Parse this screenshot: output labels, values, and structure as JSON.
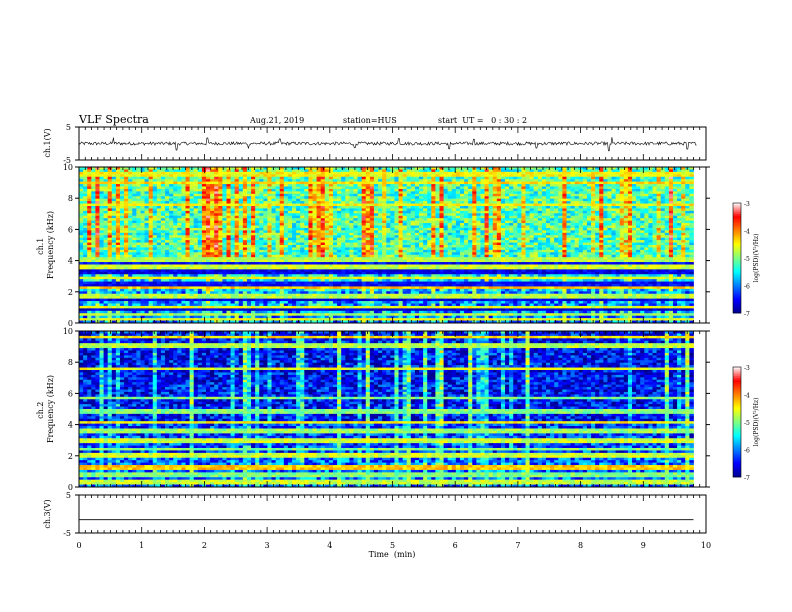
{
  "header": {
    "title": "VLF Spectra",
    "date": "Aug.21, 2019",
    "station": "station=HUS",
    "start": "start  UT =   0 : 30 : 2"
  },
  "colors": {
    "colormap": [
      "#00008f",
      "#0000ff",
      "#0080ff",
      "#00ffff",
      "#80ff80",
      "#ffff00",
      "#ff8000",
      "#ff0000",
      "#ffffff"
    ],
    "waveform": "#000000"
  },
  "chart_data": [
    {
      "type": "line",
      "name": "waveform-ch1",
      "ylabel": "ch.1(V)",
      "ylim": [
        -5,
        5
      ],
      "yticks": [
        5,
        -5
      ],
      "xlim": [
        0,
        10
      ],
      "baseline": 0,
      "noise_amplitude": 0.5,
      "spikes": [
        {
          "x": 0.55,
          "y": 1.8
        },
        {
          "x": 1.55,
          "y": -2.0
        },
        {
          "x": 2.05,
          "y": 1.7
        },
        {
          "x": 2.7,
          "y": -1.5
        },
        {
          "x": 3.2,
          "y": 1.4
        },
        {
          "x": 4.4,
          "y": -1.3
        },
        {
          "x": 5.1,
          "y": 1.5
        },
        {
          "x": 5.9,
          "y": -1.6
        },
        {
          "x": 6.3,
          "y": 1.3
        },
        {
          "x": 7.3,
          "y": -1.4
        },
        {
          "x": 8.45,
          "y": -2.2
        },
        {
          "x": 8.5,
          "y": 1.9
        },
        {
          "x": 9.7,
          "y": -1.7
        }
      ]
    },
    {
      "type": "heatmap",
      "name": "spectrogram-ch1",
      "ylabel": "ch.1\nFrequency (kHz)",
      "xlim": [
        0,
        9.8
      ],
      "ylim": [
        0,
        10
      ],
      "yticks": [
        0,
        2,
        4,
        6,
        8,
        10
      ],
      "color_range": [
        -7,
        -3
      ],
      "colorbar_label": "log(PSD)(V²/Hz)",
      "colorbar_ticks": [
        -3,
        -4,
        -5,
        -6,
        -7
      ],
      "background": {
        "low_band": [
          0,
          2
        ],
        "low_level": -6.0,
        "mid_band": [
          2,
          4
        ],
        "mid_level": -5.7,
        "high_level": -5.2
      },
      "bands": [
        {
          "f": 0.25,
          "level": -4.6
        },
        {
          "f": 0.55,
          "level": -4.8
        },
        {
          "f": 0.85,
          "level": -6.7
        },
        {
          "f": 1.0,
          "level": -4.6
        },
        {
          "f": 1.55,
          "level": -6.6
        },
        {
          "f": 1.75,
          "level": -4.8
        },
        {
          "f": 2.25,
          "level": -4.3
        },
        {
          "f": 2.5,
          "level": -6.5
        },
        {
          "f": 2.9,
          "level": -4.6
        },
        {
          "f": 3.3,
          "level": -6.6
        },
        {
          "f": 3.55,
          "level": -4.7
        },
        {
          "f": 3.85,
          "level": -6.5
        },
        {
          "f": 4.1,
          "level": -4.8
        },
        {
          "f": 7.6,
          "level": -4.5
        },
        {
          "f": 9.0,
          "level": -4.4
        },
        {
          "f": 9.55,
          "level": -4.5
        }
      ]
    },
    {
      "type": "heatmap",
      "name": "spectrogram-ch2",
      "ylabel": "ch.2\nFrequency (kHz)",
      "xlim": [
        0,
        9.8
      ],
      "ylim": [
        0,
        10
      ],
      "yticks": [
        0,
        2,
        4,
        6,
        8,
        10
      ],
      "color_range": [
        -7,
        -3
      ],
      "colorbar_label": "log(PSD)(V²/Hz)",
      "colorbar_ticks": [
        -3,
        -4,
        -5,
        -6,
        -7
      ],
      "background": {
        "low_band": [
          0,
          2
        ],
        "low_level": -6.1,
        "mid_band": [
          2,
          4
        ],
        "mid_level": -6.3,
        "high_level": -6.5
      },
      "bands": [
        {
          "f": 0.3,
          "level": -4.7
        },
        {
          "f": 0.75,
          "level": -5.0
        },
        {
          "f": 1.25,
          "level": -4.3
        },
        {
          "f": 2.0,
          "level": -4.7
        },
        {
          "f": 2.4,
          "level": -5.0
        },
        {
          "f": 3.0,
          "level": -4.7
        },
        {
          "f": 3.6,
          "level": -4.9
        },
        {
          "f": 4.15,
          "level": -4.5
        },
        {
          "f": 4.8,
          "level": -5.0
        },
        {
          "f": 5.7,
          "level": -5.0
        },
        {
          "f": 7.6,
          "level": -4.6
        },
        {
          "f": 9.1,
          "level": -4.8
        },
        {
          "f": 9.6,
          "level": -4.4
        }
      ]
    },
    {
      "type": "line",
      "name": "waveform-ch3",
      "ylabel": "ch.3(V)",
      "ylim": [
        -5,
        5
      ],
      "yticks": [
        5,
        -5
      ],
      "xlim": [
        0,
        10
      ],
      "baseline": 0,
      "noise_amplitude": 0,
      "xlabel": "Time  (min)",
      "xticks": [
        0,
        1,
        2,
        3,
        4,
        5,
        6,
        7,
        8,
        9,
        10
      ]
    }
  ]
}
